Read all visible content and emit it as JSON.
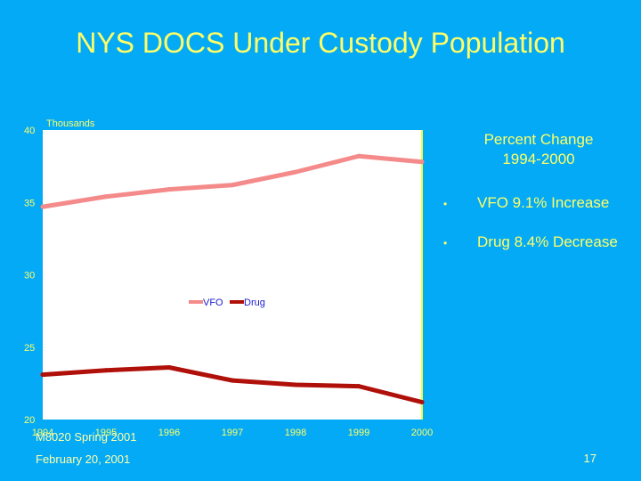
{
  "slide": {
    "title": "NYS DOCS Under Custody Population",
    "footer_course": "M8020 Spring 2001",
    "footer_date": "February 20, 2001",
    "page_number": "17"
  },
  "panel": {
    "heading_line1": "Percent Change",
    "heading_line2": "1994-2000",
    "bullet_symbol": "•",
    "items": [
      "VFO 9.1% Increase",
      "Drug 8.4% Decrease"
    ]
  },
  "colors": {
    "background": "#04aaf6",
    "title": "#ffff66",
    "plot_bg": "#ffffff",
    "vfo": "#f58a8a",
    "drug": "#b0100a",
    "axis_text": "#ffff66"
  },
  "chart_data": {
    "type": "line",
    "ylabel": "Thousands",
    "x": [
      "1994",
      "1995",
      "1996",
      "1997",
      "1998",
      "1999",
      "2000"
    ],
    "ylim": [
      20,
      40
    ],
    "yticks": [
      20,
      25,
      30,
      35,
      40
    ],
    "grid": false,
    "legend_position": "center",
    "series": [
      {
        "name": "VFO",
        "values": [
          34.7,
          35.4,
          35.9,
          36.2,
          37.1,
          38.2,
          37.8
        ]
      },
      {
        "name": "Drug",
        "values": [
          23.1,
          23.4,
          23.6,
          22.7,
          22.4,
          22.3,
          21.2
        ]
      }
    ]
  }
}
